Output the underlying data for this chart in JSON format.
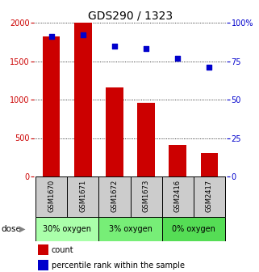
{
  "title": "GDS290 / 1323",
  "samples": [
    "GSM1670",
    "GSM1671",
    "GSM1672",
    "GSM1673",
    "GSM2416",
    "GSM2417"
  ],
  "counts": [
    1820,
    2000,
    1160,
    960,
    410,
    310
  ],
  "percentiles": [
    91,
    92,
    85,
    83,
    77,
    71
  ],
  "bar_color": "#cc0000",
  "dot_color": "#0000cc",
  "ylim_left": [
    0,
    2000
  ],
  "ylim_right": [
    0,
    100
  ],
  "yticks_left": [
    0,
    500,
    1000,
    1500,
    2000
  ],
  "ytick_labels_left": [
    "0",
    "500",
    "1000",
    "1500",
    "2000"
  ],
  "yticks_right": [
    0,
    25,
    50,
    75,
    100
  ],
  "ytick_labels_right": [
    "0",
    "25",
    "50",
    "75",
    "100%"
  ],
  "dose_groups": [
    {
      "label": "30% oxygen",
      "indices": [
        0,
        1
      ],
      "color": "#aaffaa"
    },
    {
      "label": "3% oxygen",
      "indices": [
        2,
        3
      ],
      "color": "#77ee77"
    },
    {
      "label": "0% oxygen",
      "indices": [
        4,
        5
      ],
      "color": "#55dd55"
    }
  ],
  "dose_label": "dose",
  "legend_count_label": "count",
  "legend_percentile_label": "percentile rank within the sample",
  "left_tick_color": "#cc0000",
  "right_tick_color": "#0000cc",
  "sample_box_color": "#cccccc",
  "bar_width": 0.55
}
